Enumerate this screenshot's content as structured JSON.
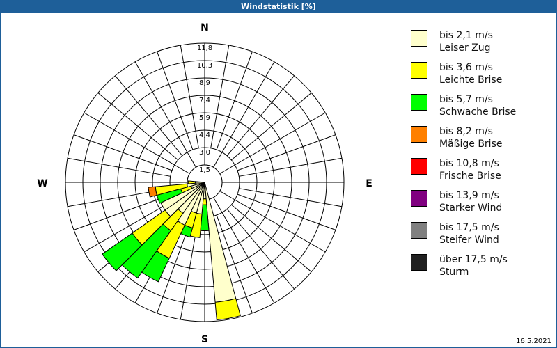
{
  "title": "Windstatistik [%]",
  "date": "16.5.2021",
  "chart_data": {
    "type": "windrose",
    "title": "Windstatistik [%]",
    "unit": "%",
    "rmax": 11.8,
    "ring_labels": [
      "1,5",
      "3,0",
      "4,4",
      "5,9",
      "7,4",
      "8,9",
      "10,3",
      "11,8"
    ],
    "ring_values": [
      1.475,
      2.95,
      4.425,
      5.9,
      7.375,
      8.85,
      10.325,
      11.8
    ],
    "compass": {
      "n": "N",
      "e": "E",
      "s": "S",
      "w": "W"
    },
    "sector_width_deg": 10,
    "classes": [
      {
        "range": "bis 2,1 m/s",
        "name": "Leiser Zug",
        "color": "#FFFFCC"
      },
      {
        "range": "bis 3,6 m/s",
        "name": "Leichte Brise",
        "color": "#FFFF00"
      },
      {
        "range": "bis 5,7 m/s",
        "name": "Schwache Brise",
        "color": "#00FF00"
      },
      {
        "range": "bis 8,2 m/s",
        "name": "Mäßige Brise",
        "color": "#FF8000"
      },
      {
        "range": "bis 10,8 m/s",
        "name": "Frische Brise",
        "color": "#FF0000"
      },
      {
        "range": "bis 13,9 m/s",
        "name": "Starker Wind",
        "color": "#800080"
      },
      {
        "range": "bis 17,5 m/s",
        "name": "Steifer Wind",
        "color": "#808080"
      },
      {
        "range": "über 17,5 m/s",
        "name": "Sturm",
        "color": "#202020"
      }
    ],
    "sectors": [
      {
        "dir": 170,
        "values": [
          10.2,
          1.5,
          0,
          0
        ]
      },
      {
        "dir": 180,
        "values": [
          1.4,
          0.5,
          2.2,
          0
        ]
      },
      {
        "dir": 190,
        "values": [
          2.7,
          2.0,
          0,
          0
        ]
      },
      {
        "dir": 200,
        "values": [
          2.7,
          1.3,
          0.8,
          0
        ]
      },
      {
        "dir": 210,
        "values": [
          4.0,
          3.1,
          2.2,
          0
        ]
      },
      {
        "dir": 220,
        "values": [
          3.2,
          1.8,
          4.9,
          0
        ]
      },
      {
        "dir": 230,
        "values": [
          4.1,
          3.4,
          3.1,
          0
        ]
      },
      {
        "dir": 240,
        "values": [
          4.1,
          0,
          0,
          0
        ]
      },
      {
        "dir": 250,
        "values": [
          1.2,
          0.9,
          2.1,
          0
        ]
      },
      {
        "dir": 260,
        "values": [
          1.5,
          2.7,
          0,
          0.6
        ]
      },
      {
        "dir": 270,
        "values": [
          0.8,
          0.6,
          0,
          0
        ]
      }
    ]
  }
}
